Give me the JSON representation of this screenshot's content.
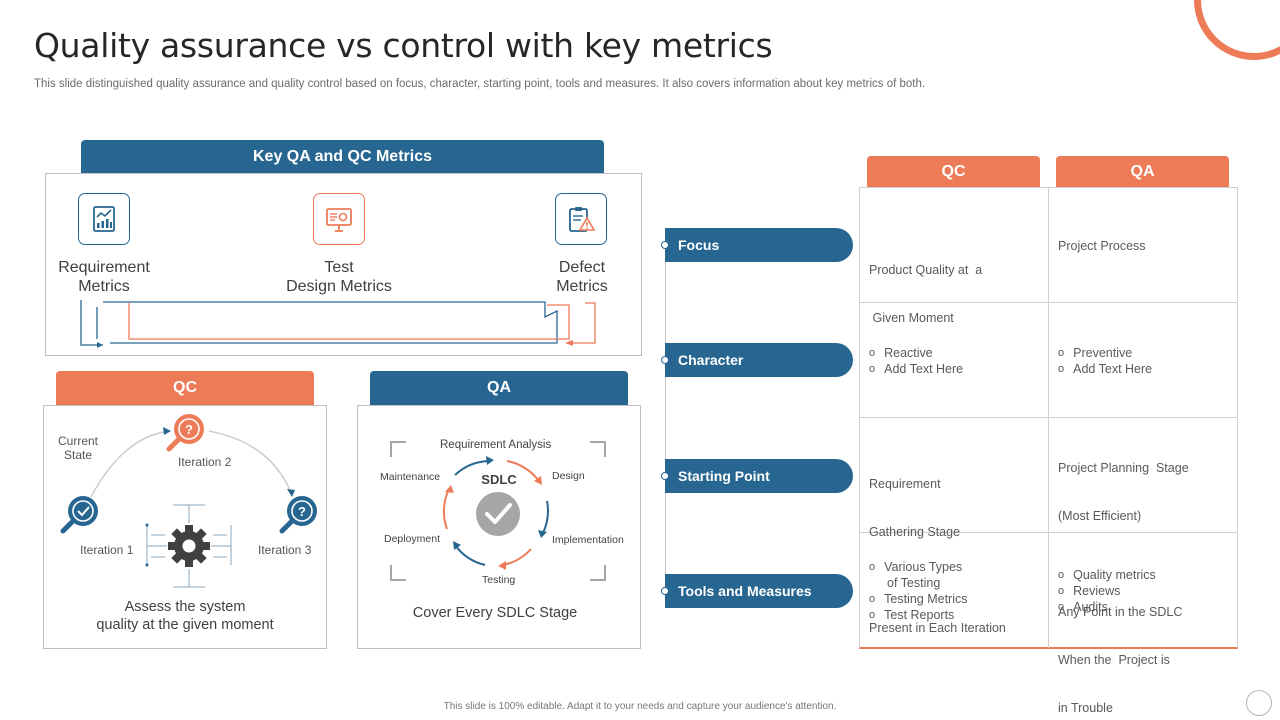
{
  "header": {
    "title": "Quality assurance vs control with key metrics",
    "subtitle": "This slide distinguished quality assurance and quality control based on focus, character, starting point, tools and measures. It also covers information about key metrics of both."
  },
  "metrics_panel": {
    "title": "Key QA and QC Metrics",
    "items": [
      {
        "label": "Requirement Metrics",
        "line1": "Requirement",
        "line2": "Metrics",
        "icon": "report-chart-icon"
      },
      {
        "label": "Test Design Metrics",
        "line1": "Test",
        "line2": "Design Metrics",
        "icon": "presentation-board-icon"
      },
      {
        "label": "Defect Metrics",
        "line1": "Defect",
        "line2": "Metrics",
        "icon": "clipboard-warning-icon"
      }
    ]
  },
  "qc_panel": {
    "title": "QC",
    "current_state_line1": "Current",
    "current_state_line2": "State",
    "iteration1": "Iteration 1",
    "iteration2": "Iteration 2",
    "iteration3": "Iteration 3",
    "caption_line1": "Assess the system",
    "caption_line2": "quality at the given moment"
  },
  "qa_panel": {
    "title": "QA",
    "center": "SDLC",
    "stages": {
      "requirement": "Requirement Analysis",
      "design": "Design",
      "implementation": "Implementation",
      "testing": "Testing",
      "deployment": "Deployment",
      "maintenance": "Maintenance"
    },
    "caption": "Cover Every SDLC Stage"
  },
  "comparison": {
    "col_qc": "QC",
    "col_qa": "QA",
    "rows": [
      {
        "label": "Focus",
        "qc": [
          "Product Quality at  a",
          " Given Moment"
        ],
        "qa": [
          "Project Process"
        ]
      },
      {
        "label": "Character",
        "qc_bullets": [
          "Reactive",
          "Add Text Here"
        ],
        "qa_bullets": [
          "Preventive",
          "Add Text Here"
        ]
      },
      {
        "label": "Starting Point",
        "qc": [
          "Requirement",
          "Gathering Stage",
          "",
          "Present in Each Iteration"
        ],
        "qa": [
          "Project Planning  Stage",
          "(Most Efficient)",
          "",
          "Any Point in the SDLC",
          "When the  Project is",
          "in Trouble"
        ]
      },
      {
        "label": "Tools and Measures",
        "qc_bullets": [
          "Various Types",
          "Testing Metrics",
          "Test Reports"
        ],
        "qc_bullet1_cont": "of Testing",
        "qa_bullets": [
          "Quality metrics",
          "Reviews",
          "Audits"
        ]
      }
    ]
  },
  "footer": {
    "text": "This slide is 100% editable.  Adapt it to your needs and capture your audience's attention."
  },
  "colors": {
    "blue": "#286692",
    "orange": "#ee7b58",
    "grey": "#bfbfbf"
  }
}
